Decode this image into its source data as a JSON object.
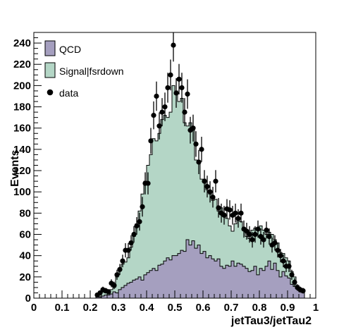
{
  "chart_data": {
    "type": "bar",
    "title": "",
    "xlabel": "jetTau3/jetTau2",
    "ylabel": "Events",
    "xlim": [
      0,
      1
    ],
    "ylim": [
      0,
      250
    ],
    "xticks": [
      "0",
      "0.1",
      "0.2",
      "0.3",
      "0.4",
      "0.5",
      "0.6",
      "0.7",
      "0.8",
      "0.9",
      "1"
    ],
    "yticks": [
      "0",
      "20",
      "40",
      "60",
      "80",
      "100",
      "120",
      "140",
      "160",
      "180",
      "200",
      "220",
      "240"
    ],
    "legend_position": "top-left",
    "legend": [
      "QCD",
      "Signal|fsrdown",
      "data"
    ],
    "bin_width": 0.01,
    "x": [
      0.225,
      0.235,
      0.245,
      0.255,
      0.265,
      0.275,
      0.285,
      0.295,
      0.305,
      0.315,
      0.325,
      0.335,
      0.345,
      0.355,
      0.365,
      0.375,
      0.385,
      0.395,
      0.405,
      0.415,
      0.425,
      0.435,
      0.445,
      0.455,
      0.465,
      0.475,
      0.485,
      0.495,
      0.505,
      0.515,
      0.525,
      0.535,
      0.545,
      0.555,
      0.565,
      0.575,
      0.585,
      0.595,
      0.605,
      0.615,
      0.625,
      0.635,
      0.645,
      0.655,
      0.665,
      0.675,
      0.685,
      0.695,
      0.705,
      0.715,
      0.725,
      0.735,
      0.745,
      0.755,
      0.765,
      0.775,
      0.785,
      0.795,
      0.805,
      0.815,
      0.825,
      0.835,
      0.845,
      0.855,
      0.865,
      0.875,
      0.885,
      0.895,
      0.905,
      0.915,
      0.925,
      0.935,
      0.945,
      0.955
    ],
    "series": [
      {
        "name": "QCD",
        "color": "#a59fbf",
        "values": [
          1,
          1,
          2,
          3,
          3,
          4,
          6,
          5,
          8,
          10,
          12,
          14,
          15,
          17,
          18,
          20,
          17,
          22,
          24,
          26,
          28,
          26,
          31,
          32,
          35,
          38,
          36,
          40,
          40,
          42,
          45,
          44,
          55,
          50,
          54,
          47,
          50,
          42,
          44,
          38,
          40,
          37,
          35,
          37,
          30,
          28,
          31,
          30,
          35,
          30,
          33,
          32,
          30,
          28,
          25,
          26,
          30,
          22,
          28,
          26,
          30,
          35,
          27,
          33,
          26,
          20,
          25,
          21,
          19,
          13,
          11,
          10,
          6,
          5
        ]
      },
      {
        "name": "Signal|fsrdown",
        "color": "#b4d6c6",
        "values": [
          1,
          2,
          6,
          5,
          4,
          8,
          10,
          20,
          26,
          32,
          34,
          38,
          48,
          58,
          70,
          82,
          98,
          110,
          125,
          135,
          150,
          148,
          155,
          168,
          172,
          170,
          175,
          200,
          195,
          185,
          188,
          165,
          162,
          165,
          158,
          130,
          128,
          112,
          112,
          102,
          98,
          92,
          93,
          82,
          85,
          80,
          75,
          68,
          63,
          70,
          75,
          72,
          66,
          58,
          56,
          64,
          66,
          66,
          68,
          64,
          60,
          62,
          60,
          55,
          52,
          43,
          42,
          38,
          35,
          25,
          20,
          12,
          8,
          4
        ]
      },
      {
        "name": "data",
        "color": "#000000",
        "x": [
          0.225,
          0.235,
          0.245,
          0.255,
          0.265,
          0.275,
          0.285,
          0.295,
          0.305,
          0.315,
          0.325,
          0.335,
          0.345,
          0.355,
          0.365,
          0.375,
          0.385,
          0.395,
          0.405,
          0.415,
          0.425,
          0.435,
          0.445,
          0.455,
          0.465,
          0.475,
          0.485,
          0.495,
          0.505,
          0.515,
          0.525,
          0.535,
          0.545,
          0.555,
          0.565,
          0.575,
          0.585,
          0.595,
          0.605,
          0.615,
          0.625,
          0.635,
          0.645,
          0.655,
          0.665,
          0.675,
          0.685,
          0.695,
          0.705,
          0.715,
          0.725,
          0.735,
          0.745,
          0.755,
          0.765,
          0.775,
          0.785,
          0.795,
          0.805,
          0.815,
          0.825,
          0.835,
          0.845,
          0.855,
          0.865,
          0.875,
          0.885,
          0.895,
          0.905,
          0.915,
          0.925,
          0.935,
          0.945,
          0.955
        ],
        "values": [
          3,
          5,
          8,
          7,
          6,
          14,
          12,
          22,
          27,
          35,
          45,
          45,
          52,
          60,
          68,
          72,
          86,
          108,
          108,
          148,
          172,
          190,
          162,
          175,
          180,
          198,
          210,
          238,
          193,
          206,
          198,
          175,
          192,
          158,
          160,
          145,
          128,
          140,
          110,
          105,
          100,
          95,
          110,
          85,
          80,
          78,
          84,
          83,
          78,
          80,
          75,
          80,
          65,
          63,
          60,
          55,
          60,
          65,
          58,
          55,
          64,
          58,
          50,
          52,
          45,
          40,
          35,
          30,
          30,
          22,
          15,
          10,
          8,
          7
        ]
      }
    ]
  }
}
